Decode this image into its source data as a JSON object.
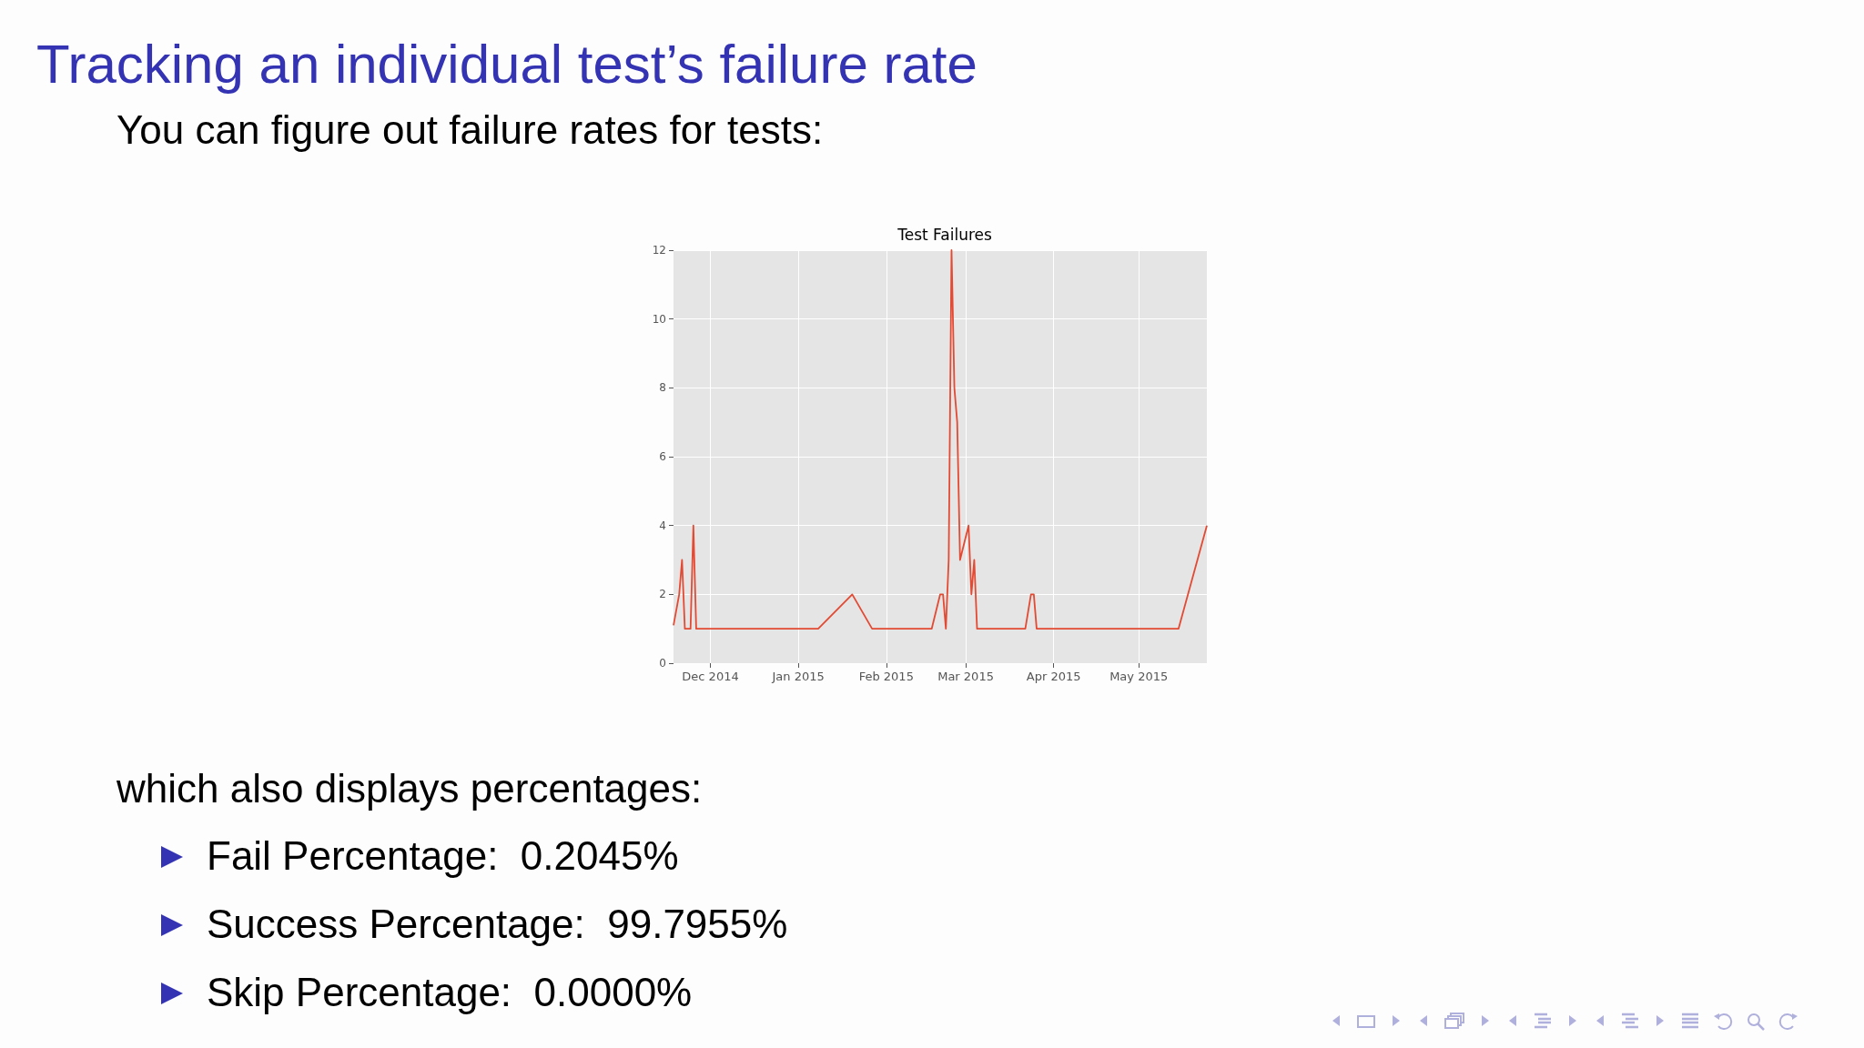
{
  "chart_data": {
    "type": "line",
    "title": "Test Failures",
    "x": [
      "2014-11-18",
      "2014-11-20",
      "2014-11-21",
      "2014-11-22",
      "2014-11-24",
      "2014-11-25",
      "2014-11-26",
      "2015-01-08",
      "2015-01-20",
      "2015-01-27",
      "2015-02-17",
      "2015-02-20",
      "2015-02-21",
      "2015-02-22",
      "2015-02-23",
      "2015-02-24",
      "2015-02-25",
      "2015-02-26",
      "2015-02-27",
      "2015-03-02",
      "2015-03-03",
      "2015-03-04",
      "2015-03-05",
      "2015-03-22",
      "2015-03-24",
      "2015-03-25",
      "2015-03-26",
      "2015-05-15",
      "2015-05-25"
    ],
    "series": [
      {
        "color": "#e24a33",
        "values": [
          1.1,
          2,
          3,
          1,
          1,
          4,
          1,
          1,
          2,
          1,
          1,
          2,
          2,
          1,
          3,
          12,
          8,
          7,
          3,
          4,
          2,
          3,
          1,
          1,
          2,
          2,
          1,
          1,
          4
        ]
      }
    ],
    "xlim": [
      "2014-11-18",
      "2015-05-25"
    ],
    "xticks": [
      {
        "value": "2014-12-01",
        "label": "Dec 2014"
      },
      {
        "value": "2015-01-01",
        "label": "Jan 2015"
      },
      {
        "value": "2015-02-01",
        "label": "Feb 2015"
      },
      {
        "value": "2015-03-01",
        "label": "Mar 2015"
      },
      {
        "value": "2015-04-01",
        "label": "Apr 2015"
      },
      {
        "value": "2015-05-01",
        "label": "May 2015"
      }
    ],
    "ylim": [
      0,
      12
    ],
    "yticks": [
      0,
      2,
      4,
      6,
      8,
      10,
      12
    ],
    "grid": true,
    "marker": "none",
    "line_style": "solid",
    "annotations": [
      "Tracking an individual test’s failure rate",
      "You can figure out failure rates for tests:",
      "which also displays percentages:",
      "Fail Percentage:  0.2045%",
      "Success Percentage:  99.7955%",
      "Skip Percentage:  0.0000%"
    ]
  }
}
